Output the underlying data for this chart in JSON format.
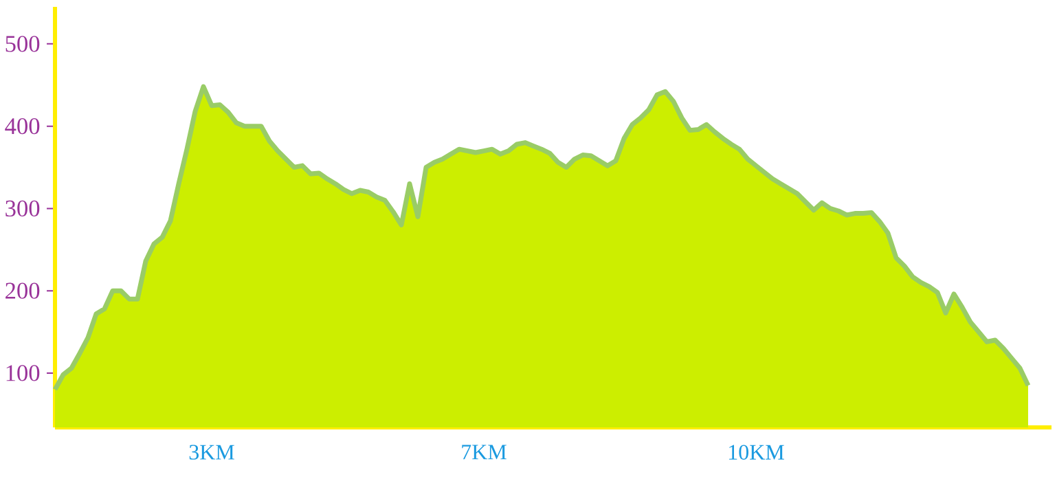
{
  "chart_data": {
    "type": "area",
    "categories": [
      null,
      null,
      null,
      null,
      null,
      null,
      null,
      null,
      null,
      null,
      null,
      null,
      null,
      null,
      null,
      null,
      null,
      null,
      null,
      "3KM",
      null,
      null,
      null,
      null,
      null,
      null,
      null,
      null,
      null,
      null,
      null,
      null,
      null,
      null,
      null,
      null,
      null,
      null,
      null,
      null,
      null,
      null,
      null,
      null,
      null,
      null,
      null,
      null,
      null,
      null,
      null,
      null,
      "7KM",
      null,
      null,
      null,
      null,
      null,
      null,
      null,
      null,
      null,
      null,
      null,
      null,
      null,
      null,
      null,
      null,
      null,
      null,
      null,
      null,
      null,
      null,
      null,
      null,
      null,
      null,
      null,
      null,
      null,
      null,
      null,
      null,
      "10KM",
      null,
      null,
      null,
      null,
      null,
      null,
      null,
      null,
      null,
      null,
      null,
      null,
      null,
      null,
      null,
      null,
      null,
      null,
      null,
      null,
      null,
      null,
      null,
      null,
      null,
      null,
      null,
      null,
      null,
      null,
      null,
      null,
      null
    ],
    "values": [
      80,
      98,
      106,
      124,
      143,
      172,
      178,
      200,
      200,
      190,
      190,
      236,
      257,
      265,
      285,
      330,
      372,
      418,
      448,
      425,
      426,
      417,
      404,
      400,
      400,
      400,
      382,
      370,
      360,
      350,
      352,
      342,
      343,
      336,
      330,
      323,
      318,
      322,
      320,
      314,
      310,
      296,
      280,
      330,
      290,
      350,
      356,
      360,
      366,
      372,
      370,
      368,
      370,
      372,
      366,
      370,
      378,
      380,
      376,
      372,
      367,
      356,
      350,
      360,
      365,
      364,
      358,
      352,
      358,
      385,
      402,
      410,
      420,
      438,
      442,
      430,
      410,
      395,
      396,
      402,
      393,
      385,
      378,
      372,
      360,
      352,
      344,
      336,
      330,
      324,
      318,
      308,
      298,
      307,
      300,
      297,
      292,
      294,
      294,
      295,
      284,
      270,
      240,
      230,
      217,
      210,
      205,
      198,
      173,
      196,
      180,
      162,
      150,
      138,
      140,
      130,
      118,
      106,
      85
    ],
    "color": "#99cc66",
    "ylim": [
      34,
      545
    ],
    "yticks": [
      100,
      200,
      300,
      400,
      500
    ]
  }
}
